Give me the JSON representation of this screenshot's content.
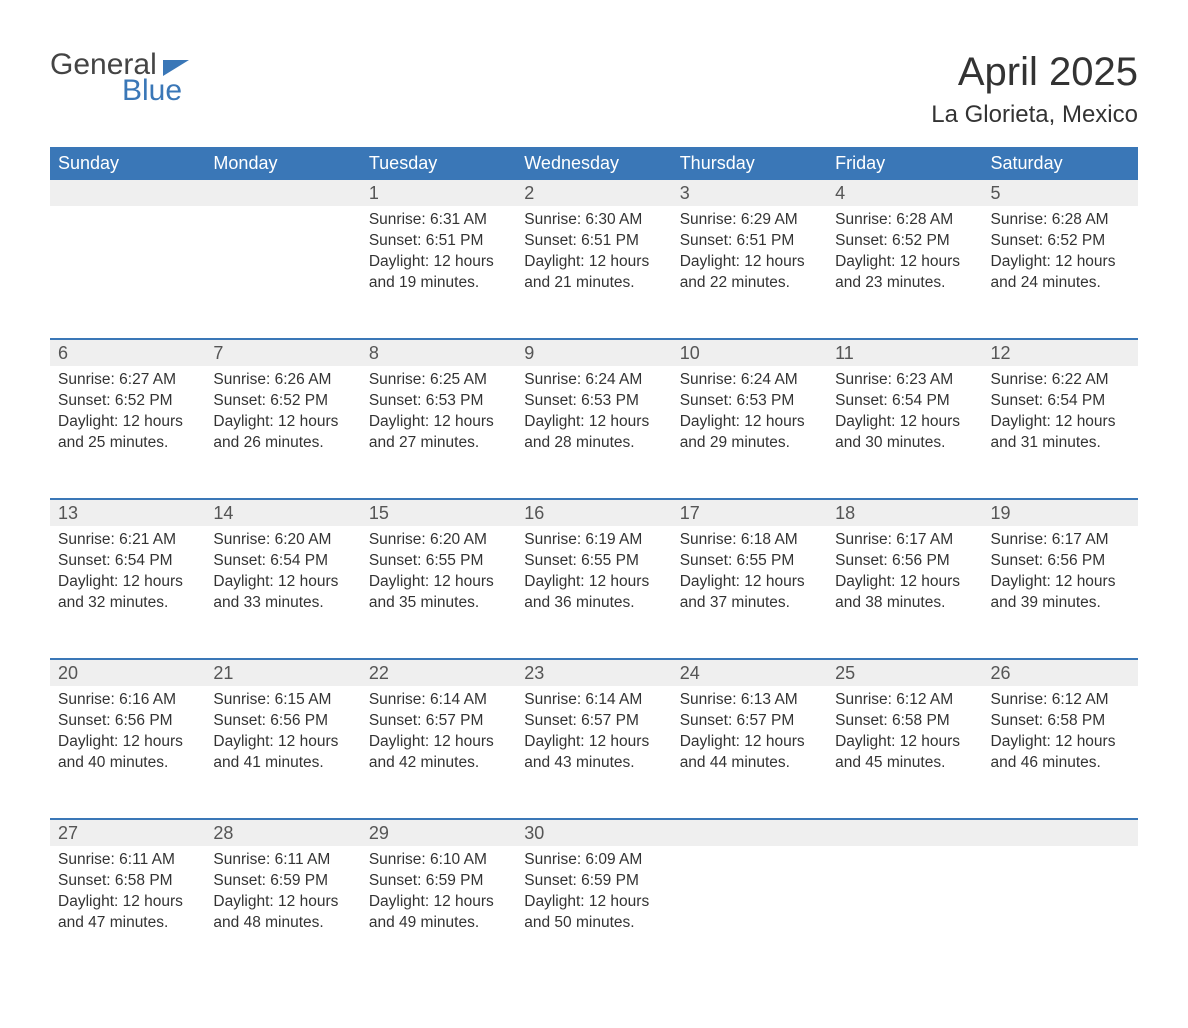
{
  "brand": {
    "word1": "General",
    "word2": "Blue"
  },
  "title": "April 2025",
  "location": "La Glorieta, Mexico",
  "colors": {
    "header_bg": "#3a77b7",
    "header_text": "#ffffff",
    "daynum_bg": "#efefef",
    "row_divider": "#3a77b7",
    "body_text": "#333333",
    "logo_gray": "#444444",
    "logo_blue": "#3a77b7",
    "page_bg": "#ffffff"
  },
  "typography": {
    "title_fontsize": 40,
    "location_fontsize": 24,
    "header_fontsize": 18,
    "daynum_fontsize": 18,
    "cell_fontsize": 15.5,
    "font_family": "Arial"
  },
  "columns": [
    "Sunday",
    "Monday",
    "Tuesday",
    "Wednesday",
    "Thursday",
    "Friday",
    "Saturday"
  ],
  "weeks": [
    {
      "nums": [
        "",
        "",
        "1",
        "2",
        "3",
        "4",
        "5"
      ],
      "cells": [
        {},
        {},
        {
          "sunrise": "Sunrise: 6:31 AM",
          "sunset": "Sunset: 6:51 PM",
          "day1": "Daylight: 12 hours",
          "day2": "and 19 minutes."
        },
        {
          "sunrise": "Sunrise: 6:30 AM",
          "sunset": "Sunset: 6:51 PM",
          "day1": "Daylight: 12 hours",
          "day2": "and 21 minutes."
        },
        {
          "sunrise": "Sunrise: 6:29 AM",
          "sunset": "Sunset: 6:51 PM",
          "day1": "Daylight: 12 hours",
          "day2": "and 22 minutes."
        },
        {
          "sunrise": "Sunrise: 6:28 AM",
          "sunset": "Sunset: 6:52 PM",
          "day1": "Daylight: 12 hours",
          "day2": "and 23 minutes."
        },
        {
          "sunrise": "Sunrise: 6:28 AM",
          "sunset": "Sunset: 6:52 PM",
          "day1": "Daylight: 12 hours",
          "day2": "and 24 minutes."
        }
      ]
    },
    {
      "nums": [
        "6",
        "7",
        "8",
        "9",
        "10",
        "11",
        "12"
      ],
      "cells": [
        {
          "sunrise": "Sunrise: 6:27 AM",
          "sunset": "Sunset: 6:52 PM",
          "day1": "Daylight: 12 hours",
          "day2": "and 25 minutes."
        },
        {
          "sunrise": "Sunrise: 6:26 AM",
          "sunset": "Sunset: 6:52 PM",
          "day1": "Daylight: 12 hours",
          "day2": "and 26 minutes."
        },
        {
          "sunrise": "Sunrise: 6:25 AM",
          "sunset": "Sunset: 6:53 PM",
          "day1": "Daylight: 12 hours",
          "day2": "and 27 minutes."
        },
        {
          "sunrise": "Sunrise: 6:24 AM",
          "sunset": "Sunset: 6:53 PM",
          "day1": "Daylight: 12 hours",
          "day2": "and 28 minutes."
        },
        {
          "sunrise": "Sunrise: 6:24 AM",
          "sunset": "Sunset: 6:53 PM",
          "day1": "Daylight: 12 hours",
          "day2": "and 29 minutes."
        },
        {
          "sunrise": "Sunrise: 6:23 AM",
          "sunset": "Sunset: 6:54 PM",
          "day1": "Daylight: 12 hours",
          "day2": "and 30 minutes."
        },
        {
          "sunrise": "Sunrise: 6:22 AM",
          "sunset": "Sunset: 6:54 PM",
          "day1": "Daylight: 12 hours",
          "day2": "and 31 minutes."
        }
      ]
    },
    {
      "nums": [
        "13",
        "14",
        "15",
        "16",
        "17",
        "18",
        "19"
      ],
      "cells": [
        {
          "sunrise": "Sunrise: 6:21 AM",
          "sunset": "Sunset: 6:54 PM",
          "day1": "Daylight: 12 hours",
          "day2": "and 32 minutes."
        },
        {
          "sunrise": "Sunrise: 6:20 AM",
          "sunset": "Sunset: 6:54 PM",
          "day1": "Daylight: 12 hours",
          "day2": "and 33 minutes."
        },
        {
          "sunrise": "Sunrise: 6:20 AM",
          "sunset": "Sunset: 6:55 PM",
          "day1": "Daylight: 12 hours",
          "day2": "and 35 minutes."
        },
        {
          "sunrise": "Sunrise: 6:19 AM",
          "sunset": "Sunset: 6:55 PM",
          "day1": "Daylight: 12 hours",
          "day2": "and 36 minutes."
        },
        {
          "sunrise": "Sunrise: 6:18 AM",
          "sunset": "Sunset: 6:55 PM",
          "day1": "Daylight: 12 hours",
          "day2": "and 37 minutes."
        },
        {
          "sunrise": "Sunrise: 6:17 AM",
          "sunset": "Sunset: 6:56 PM",
          "day1": "Daylight: 12 hours",
          "day2": "and 38 minutes."
        },
        {
          "sunrise": "Sunrise: 6:17 AM",
          "sunset": "Sunset: 6:56 PM",
          "day1": "Daylight: 12 hours",
          "day2": "and 39 minutes."
        }
      ]
    },
    {
      "nums": [
        "20",
        "21",
        "22",
        "23",
        "24",
        "25",
        "26"
      ],
      "cells": [
        {
          "sunrise": "Sunrise: 6:16 AM",
          "sunset": "Sunset: 6:56 PM",
          "day1": "Daylight: 12 hours",
          "day2": "and 40 minutes."
        },
        {
          "sunrise": "Sunrise: 6:15 AM",
          "sunset": "Sunset: 6:56 PM",
          "day1": "Daylight: 12 hours",
          "day2": "and 41 minutes."
        },
        {
          "sunrise": "Sunrise: 6:14 AM",
          "sunset": "Sunset: 6:57 PM",
          "day1": "Daylight: 12 hours",
          "day2": "and 42 minutes."
        },
        {
          "sunrise": "Sunrise: 6:14 AM",
          "sunset": "Sunset: 6:57 PM",
          "day1": "Daylight: 12 hours",
          "day2": "and 43 minutes."
        },
        {
          "sunrise": "Sunrise: 6:13 AM",
          "sunset": "Sunset: 6:57 PM",
          "day1": "Daylight: 12 hours",
          "day2": "and 44 minutes."
        },
        {
          "sunrise": "Sunrise: 6:12 AM",
          "sunset": "Sunset: 6:58 PM",
          "day1": "Daylight: 12 hours",
          "day2": "and 45 minutes."
        },
        {
          "sunrise": "Sunrise: 6:12 AM",
          "sunset": "Sunset: 6:58 PM",
          "day1": "Daylight: 12 hours",
          "day2": "and 46 minutes."
        }
      ]
    },
    {
      "nums": [
        "27",
        "28",
        "29",
        "30",
        "",
        "",
        ""
      ],
      "cells": [
        {
          "sunrise": "Sunrise: 6:11 AM",
          "sunset": "Sunset: 6:58 PM",
          "day1": "Daylight: 12 hours",
          "day2": "and 47 minutes."
        },
        {
          "sunrise": "Sunrise: 6:11 AM",
          "sunset": "Sunset: 6:59 PM",
          "day1": "Daylight: 12 hours",
          "day2": "and 48 minutes."
        },
        {
          "sunrise": "Sunrise: 6:10 AM",
          "sunset": "Sunset: 6:59 PM",
          "day1": "Daylight: 12 hours",
          "day2": "and 49 minutes."
        },
        {
          "sunrise": "Sunrise: 6:09 AM",
          "sunset": "Sunset: 6:59 PM",
          "day1": "Daylight: 12 hours",
          "day2": "and 50 minutes."
        },
        {},
        {},
        {}
      ]
    }
  ]
}
